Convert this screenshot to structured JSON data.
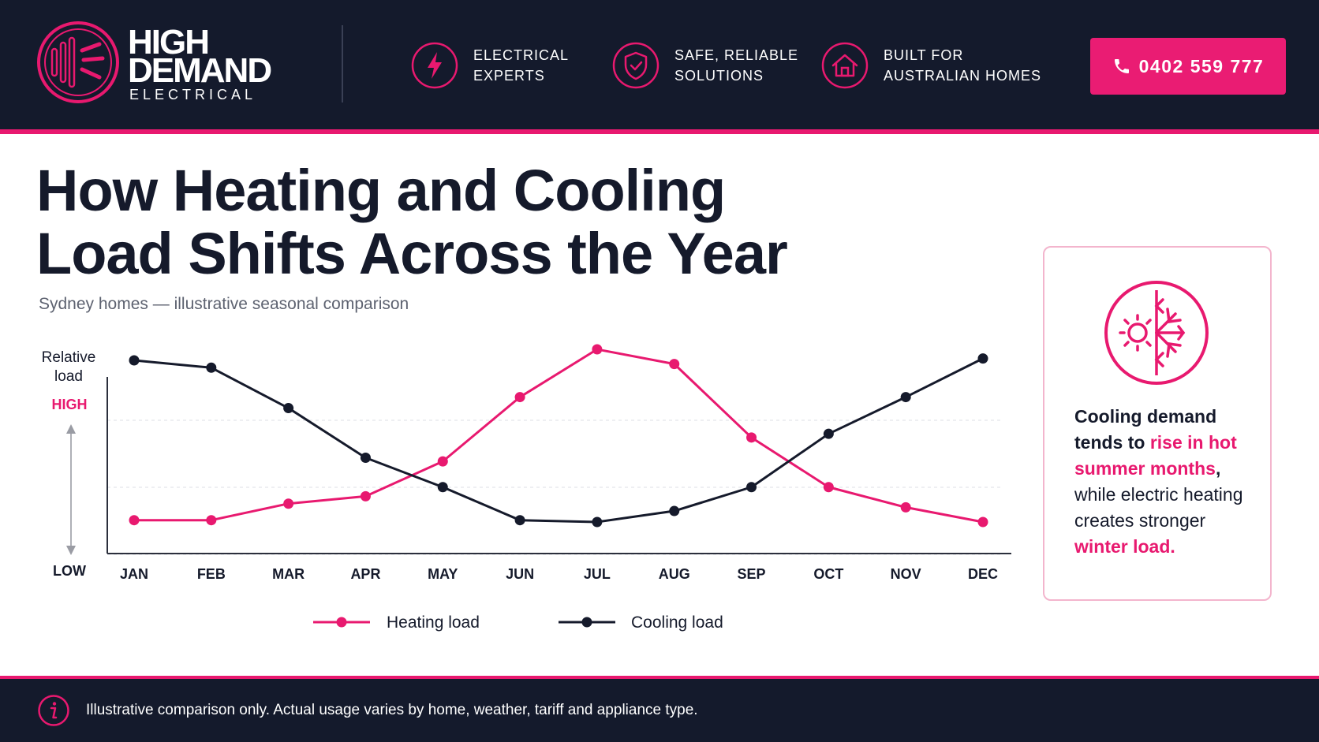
{
  "brand": {
    "name_line1": "HIGH",
    "name_line2": "DEMAND",
    "name_line3": "ELECTRICAL",
    "accent_color": "#e8196f",
    "navy_color": "#141a2c"
  },
  "header": {
    "features": [
      {
        "icon": "lightning-icon",
        "line1": "ELECTRICAL",
        "line2": "EXPERTS"
      },
      {
        "icon": "shield-check-icon",
        "line1": "SAFE, RELIABLE",
        "line2": "SOLUTIONS"
      },
      {
        "icon": "home-icon",
        "line1": "BUILT FOR",
        "line2": "AUSTRALIAN HOMES"
      }
    ],
    "phone": "0402 559 777",
    "phone_icon": "phone-icon"
  },
  "page": {
    "title_line1": "How Heating and Cooling",
    "title_line2": "Load Shifts Across the Year",
    "subtitle": "Sydney homes — illustrative seasonal comparison"
  },
  "chart_data": {
    "type": "line",
    "title": "How Heating and Cooling Load Shifts Across the Year",
    "subtitle": "Sydney homes — illustrative seasonal comparison",
    "xlabel": "",
    "ylabel": "Relative load",
    "y_high_label": "HIGH",
    "y_low_label": "LOW",
    "categories": [
      "JAN",
      "FEB",
      "MAR",
      "APR",
      "MAY",
      "JUN",
      "JUL",
      "AUG",
      "SEP",
      "OCT",
      "NOV",
      "DEC"
    ],
    "ylim": [
      0,
      100
    ],
    "grid": true,
    "legend_position": "bottom",
    "series": [
      {
        "name": "Heating load",
        "color": "#e8196f",
        "values": [
          7,
          7,
          16,
          20,
          39,
          74,
          100,
          92,
          52,
          25,
          14,
          6
        ]
      },
      {
        "name": "Cooling load",
        "color": "#151a2b",
        "values": [
          94,
          90,
          68,
          41,
          25,
          7,
          6,
          12,
          25,
          54,
          74,
          95
        ]
      }
    ]
  },
  "side_card": {
    "icon": "sun-snowflake-icon",
    "text_1": "Cooling demand tends to ",
    "highlight_1": "rise in hot summer months",
    "text_2": ", ",
    "text_3": "while electric heating creates stronger ",
    "highlight_2": "winter load."
  },
  "footer": {
    "icon": "info-icon",
    "note": "Illustrative comparison only. Actual usage varies by home, weather, tariff and appliance type."
  }
}
